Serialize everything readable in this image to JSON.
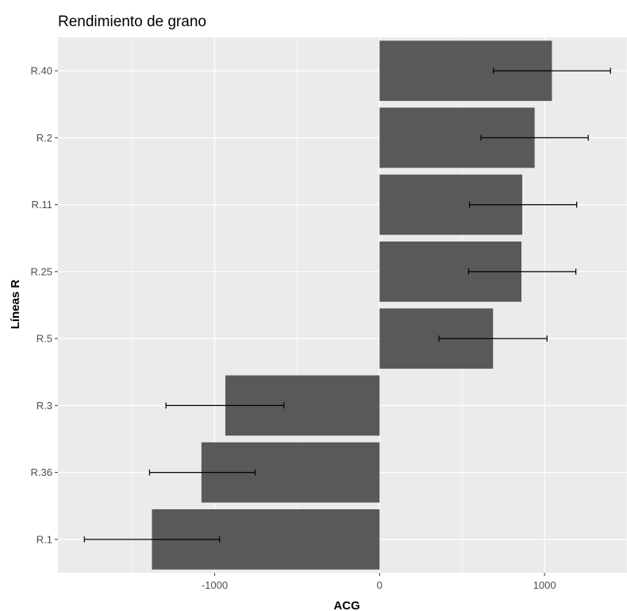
{
  "chart_data": {
    "type": "bar",
    "orientation": "horizontal",
    "title": "Rendimiento de grano",
    "xlabel": "ACG",
    "ylabel": "Líneas R",
    "categories": [
      "R.40",
      "R.2",
      "R.11",
      "R.25",
      "R.5",
      "R.3",
      "R.36",
      "R.1"
    ],
    "values": [
      1045,
      940,
      865,
      860,
      688,
      -935,
      -1080,
      -1380
    ],
    "error_low": [
      690,
      615,
      545,
      540,
      360,
      -1295,
      -1395,
      -1790
    ],
    "error_high": [
      1400,
      1265,
      1195,
      1190,
      1015,
      -580,
      -755,
      -970
    ],
    "x_ticks": [
      -1000,
      0,
      1000
    ],
    "x_tick_labels": [
      "-1000",
      "0",
      "1000"
    ],
    "xlim": [
      -1950,
      1500
    ],
    "grid": true,
    "colors": {
      "panel": "#ebebeb",
      "grid": "#ffffff",
      "bar": "#595959",
      "error_bar": "#000000",
      "tick": "#333333"
    }
  }
}
